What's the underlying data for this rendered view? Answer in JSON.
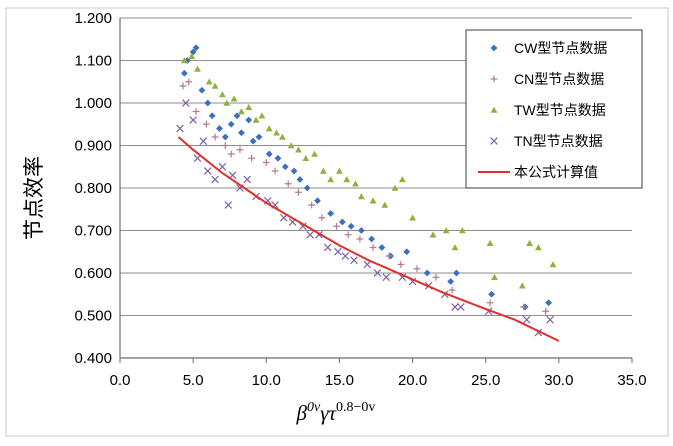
{
  "chart_data": {
    "type": "scatter",
    "title": "",
    "ylabel": "节点效率",
    "xlabel": "β^{0v}γτ^{0.8-0v}",
    "xlabel_parts": {
      "beta": "β",
      "beta_sup": "0v",
      "gamma_tau": "γτ",
      "tau_sup": "0.8−0v"
    },
    "xlim": [
      0,
      35
    ],
    "ylim": [
      0.4,
      1.2
    ],
    "x_ticks": [
      "0.0",
      "5.0",
      "10.0",
      "15.0",
      "20.0",
      "25.0",
      "30.0",
      "35.0"
    ],
    "y_ticks": [
      "0.400",
      "0.500",
      "0.600",
      "0.700",
      "0.800",
      "0.900",
      "1.000",
      "1.100",
      "1.200"
    ],
    "grid": "horizontal",
    "legend_position": "top-right",
    "series": [
      {
        "name": "CW型节点数据",
        "marker": "diamond",
        "color": "#3b6fbf",
        "points": [
          [
            4.4,
            1.07
          ],
          [
            4.6,
            1.1
          ],
          [
            5.0,
            1.12
          ],
          [
            5.2,
            1.13
          ],
          [
            5.6,
            1.03
          ],
          [
            6.0,
            1.0
          ],
          [
            6.3,
            0.97
          ],
          [
            6.8,
            0.94
          ],
          [
            7.2,
            0.92
          ],
          [
            7.6,
            0.95
          ],
          [
            8.0,
            0.97
          ],
          [
            8.3,
            0.93
          ],
          [
            8.8,
            0.96
          ],
          [
            9.1,
            0.91
          ],
          [
            9.5,
            0.92
          ],
          [
            10.2,
            0.88
          ],
          [
            10.8,
            0.87
          ],
          [
            11.3,
            0.85
          ],
          [
            11.9,
            0.84
          ],
          [
            12.3,
            0.82
          ],
          [
            12.8,
            0.8
          ],
          [
            13.5,
            0.77
          ],
          [
            14.4,
            0.74
          ],
          [
            15.2,
            0.72
          ],
          [
            15.8,
            0.71
          ],
          [
            16.5,
            0.7
          ],
          [
            17.2,
            0.68
          ],
          [
            17.9,
            0.66
          ],
          [
            18.5,
            0.64
          ],
          [
            19.6,
            0.65
          ],
          [
            21.0,
            0.6
          ],
          [
            22.6,
            0.58
          ],
          [
            23.0,
            0.6
          ],
          [
            25.4,
            0.55
          ],
          [
            27.7,
            0.52
          ],
          [
            29.3,
            0.53
          ]
        ]
      },
      {
        "name": "CN型节点数据",
        "marker": "plus",
        "color": "#b07a96",
        "points": [
          [
            4.3,
            1.04
          ],
          [
            4.7,
            1.05
          ],
          [
            5.2,
            0.98
          ],
          [
            5.9,
            0.95
          ],
          [
            6.5,
            0.92
          ],
          [
            7.2,
            0.9
          ],
          [
            7.6,
            0.88
          ],
          [
            8.2,
            0.89
          ],
          [
            9.0,
            0.87
          ],
          [
            10.0,
            0.86
          ],
          [
            10.6,
            0.84
          ],
          [
            11.5,
            0.81
          ],
          [
            12.2,
            0.79
          ],
          [
            13.1,
            0.76
          ],
          [
            13.8,
            0.73
          ],
          [
            14.8,
            0.71
          ],
          [
            15.6,
            0.69
          ],
          [
            16.4,
            0.68
          ],
          [
            17.3,
            0.66
          ],
          [
            18.4,
            0.64
          ],
          [
            19.2,
            0.62
          ],
          [
            20.3,
            0.61
          ],
          [
            21.6,
            0.59
          ],
          [
            22.7,
            0.56
          ],
          [
            25.3,
            0.53
          ],
          [
            27.6,
            0.52
          ],
          [
            29.1,
            0.51
          ]
        ]
      },
      {
        "name": "TW型节点数据",
        "marker": "triangle",
        "color": "#8fb13d",
        "points": [
          [
            4.4,
            1.1
          ],
          [
            4.9,
            1.11
          ],
          [
            5.3,
            1.08
          ],
          [
            6.1,
            1.05
          ],
          [
            6.5,
            1.04
          ],
          [
            7.0,
            1.02
          ],
          [
            7.3,
            1.0
          ],
          [
            7.8,
            1.01
          ],
          [
            8.3,
            0.98
          ],
          [
            8.8,
            0.99
          ],
          [
            9.3,
            0.96
          ],
          [
            9.7,
            0.97
          ],
          [
            10.2,
            0.94
          ],
          [
            10.7,
            0.93
          ],
          [
            11.1,
            0.92
          ],
          [
            11.7,
            0.9
          ],
          [
            12.2,
            0.89
          ],
          [
            12.7,
            0.87
          ],
          [
            13.3,
            0.88
          ],
          [
            13.9,
            0.84
          ],
          [
            14.4,
            0.82
          ],
          [
            15.0,
            0.84
          ],
          [
            15.5,
            0.82
          ],
          [
            16.1,
            0.81
          ],
          [
            16.5,
            0.78
          ],
          [
            17.3,
            0.77
          ],
          [
            18.1,
            0.76
          ],
          [
            18.8,
            0.8
          ],
          [
            19.3,
            0.82
          ],
          [
            20.0,
            0.73
          ],
          [
            21.4,
            0.69
          ],
          [
            22.3,
            0.7
          ],
          [
            22.9,
            0.66
          ],
          [
            23.4,
            0.7
          ],
          [
            25.3,
            0.67
          ],
          [
            25.6,
            0.59
          ],
          [
            27.5,
            0.57
          ],
          [
            28.0,
            0.67
          ],
          [
            28.6,
            0.66
          ],
          [
            29.6,
            0.62
          ]
        ]
      },
      {
        "name": "TN型节点数据",
        "marker": "x",
        "color": "#8062a6",
        "points": [
          [
            4.1,
            0.94
          ],
          [
            4.5,
            1.0
          ],
          [
            5.0,
            0.96
          ],
          [
            5.3,
            0.87
          ],
          [
            5.7,
            0.91
          ],
          [
            6.0,
            0.84
          ],
          [
            6.5,
            0.82
          ],
          [
            7.0,
            0.85
          ],
          [
            7.4,
            0.76
          ],
          [
            7.7,
            0.83
          ],
          [
            8.2,
            0.8
          ],
          [
            8.7,
            0.82
          ],
          [
            9.3,
            0.78
          ],
          [
            10.1,
            0.77
          ],
          [
            10.6,
            0.76
          ],
          [
            11.2,
            0.73
          ],
          [
            11.8,
            0.72
          ],
          [
            12.5,
            0.71
          ],
          [
            13.0,
            0.69
          ],
          [
            13.6,
            0.69
          ],
          [
            14.2,
            0.66
          ],
          [
            14.9,
            0.65
          ],
          [
            15.4,
            0.64
          ],
          [
            16.0,
            0.63
          ],
          [
            16.9,
            0.62
          ],
          [
            17.6,
            0.6
          ],
          [
            18.2,
            0.59
          ],
          [
            19.3,
            0.59
          ],
          [
            20.0,
            0.58
          ],
          [
            21.1,
            0.57
          ],
          [
            22.2,
            0.55
          ],
          [
            22.9,
            0.52
          ],
          [
            23.3,
            0.52
          ],
          [
            25.2,
            0.51
          ],
          [
            27.8,
            0.49
          ],
          [
            28.6,
            0.46
          ],
          [
            29.4,
            0.49
          ]
        ]
      },
      {
        "name": "本公式计算值",
        "marker": "line",
        "color": "#e0302a",
        "points": [
          [
            4.0,
            0.92
          ],
          [
            5.0,
            0.89
          ],
          [
            7.0,
            0.835
          ],
          [
            10.0,
            0.765
          ],
          [
            12.0,
            0.725
          ],
          [
            15.0,
            0.665
          ],
          [
            17.0,
            0.63
          ],
          [
            20.0,
            0.585
          ],
          [
            22.0,
            0.555
          ],
          [
            25.0,
            0.515
          ],
          [
            27.0,
            0.49
          ],
          [
            30.0,
            0.44
          ]
        ]
      }
    ]
  }
}
